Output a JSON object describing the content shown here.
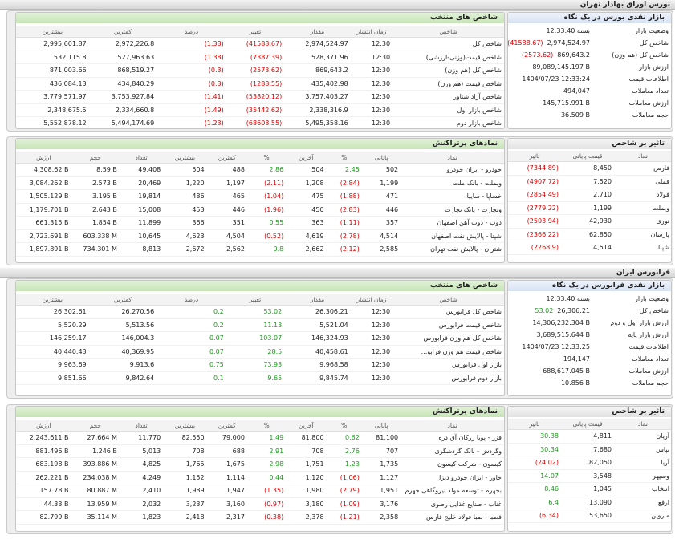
{
  "sections": [
    {
      "title": "بورس اوراق بهادار تهران",
      "indices": {
        "title": "شاخص های منتخب",
        "columns": [
          "شاخص",
          "زمان انتشار",
          "مقدار",
          "تغییر",
          "درصد",
          "کمترین",
          "بیشترین"
        ],
        "rows": [
          [
            "شاخص کل",
            "12:30",
            "2,974,524.97",
            "(41588.67)",
            "(1.38)",
            "2,972,226.8",
            "2,995,601.87"
          ],
          [
            "شاخص قیمت(وزنی-ارزشی)",
            "12:30",
            "528,371.96",
            "(7387.39)",
            "(1.38)",
            "527,963.63",
            "532,115.8"
          ],
          [
            "شاخص کل (هم وزن)",
            "12:30",
            "869,643.2",
            "(2573.62)",
            "(0.3)",
            "868,519.27",
            "871,003.66"
          ],
          [
            "شاخص قیمت (هم وزن)",
            "12:30",
            "435,402.98",
            "(1288.55)",
            "(0.3)",
            "434,840.29",
            "436,084.13"
          ],
          [
            "شاخص آزاد شناور",
            "12:30",
            "3,757,403.27",
            "(53820.12)",
            "(1.41)",
            "3,753,927.84",
            "3,779,571.97"
          ],
          [
            "شاخص بازار اول",
            "12:30",
            "2,338,316.9",
            "(35442.62)",
            "(1.49)",
            "2,334,660.8",
            "2,348,675.5"
          ],
          [
            "شاخص بازار دوم",
            "12:30",
            "5,495,358.16",
            "(68608.55)",
            "(1.23)",
            "5,494,174.69",
            "5,552,878.12"
          ]
        ]
      },
      "glance": {
        "title": "بازار نقدی بورس در یک نگاه",
        "rows": [
          {
            "label": "وضعیت بازار",
            "value": "بسته 12:33:40"
          },
          {
            "label": "شاخص کل",
            "value": "2,974,524.97",
            "change": "(41588.67)"
          },
          {
            "label": "شاخص کل (هم وزن)",
            "value": "869,643.2",
            "change": "(2573.62)"
          },
          {
            "label": "ارزش بازار",
            "value": "89,089,145.197 B"
          },
          {
            "label": "اطلاعات قیمت",
            "value": "1404/07/23 12:33:24"
          },
          {
            "label": "تعداد معاملات",
            "value": "494,047"
          },
          {
            "label": "ارزش معاملات",
            "value": "145,715.991 B"
          },
          {
            "label": "حجم معاملات",
            "value": "36.509 B"
          }
        ]
      },
      "active": {
        "title": "نمادهای پرتراکنش",
        "columns": [
          "نماد",
          "پایانی",
          "%",
          "آخرین",
          "%",
          "کمترین",
          "بیشترین",
          "تعداد",
          "حجم",
          "ارزش"
        ],
        "rows": [
          [
            "خودرو - ایران خودرو",
            "502",
            "2.45",
            "504",
            "2.86",
            "488",
            "504",
            "49,408",
            "8.59 B",
            "4,308.62 B"
          ],
          [
            "وبملت - بانک ملت",
            "1,199",
            "(2.84)",
            "1,208",
            "(2.11)",
            "1,197",
            "1,220",
            "20,469",
            "2.573 B",
            "3,084.262 B"
          ],
          [
            "خساپا - سایپا",
            "471",
            "(1.88)",
            "475",
            "(1.04)",
            "465",
            "486",
            "19,814",
            "3.195 B",
            "1,505.129 B"
          ],
          [
            "وتجارت - بانک تجارت",
            "446",
            "(2.83)",
            "450",
            "(1.96)",
            "446",
            "453",
            "15,008",
            "2.643 B",
            "1,179.701 B"
          ],
          [
            "ذوب - ذوب آهن اصفهان",
            "357",
            "(1.11)",
            "363",
            "0.55",
            "351",
            "366",
            "11,899",
            "1.854 B",
            "661.315 B"
          ],
          [
            "شپنا - پالایش نفت اصفهان",
            "4,514",
            "(2.78)",
            "4,619",
            "(0.52)",
            "4,504",
            "4,623",
            "10,645",
            "603.338 M",
            "2,723.691 B"
          ],
          [
            "شتران - پالایش نفت تهران",
            "2,585",
            "(2.12)",
            "2,662",
            "0.8",
            "2,562",
            "2,672",
            "8,813",
            "734.301 M",
            "1,897.891 B"
          ]
        ]
      },
      "impact": {
        "title": "تاثیر بر شاخص",
        "columns": [
          "نماد",
          "قیمت پایانی",
          "تاثیر"
        ],
        "rows": [
          [
            "فارس",
            "8,450",
            "(7344.89)"
          ],
          [
            "فملی",
            "7,520",
            "(4907.72)"
          ],
          [
            "فولاد",
            "2,710",
            "(2854.49)"
          ],
          [
            "وبملت",
            "1,199",
            "(2779.22)"
          ],
          [
            "نوری",
            "42,930",
            "(2503.94)"
          ],
          [
            "پارسان",
            "62,850",
            "(2366.22)"
          ],
          [
            "شپنا",
            "4,514",
            "(2268.9)"
          ]
        ]
      }
    },
    {
      "title": "فرابورس ایران",
      "indices": {
        "title": "شاخص های منتخب",
        "columns": [
          "شاخص",
          "زمان انتشار",
          "مقدار",
          "تغییر",
          "درصد",
          "کمترین",
          "بیشترین"
        ],
        "rows": [
          [
            "شاخص کل فرابورس",
            "12:30",
            "26,306.21",
            "53.02",
            "0.2",
            "26,270.56",
            "26,302.61"
          ],
          [
            "شاخص قیمت فرابورس",
            "12:30",
            "5,521.04",
            "11.13",
            "0.2",
            "5,513.56",
            "5,520.29"
          ],
          [
            "شاخص کل هم وزن فرابورس",
            "12:30",
            "146,324.93",
            "103.07",
            "0.07",
            "146,004.3",
            "146,259.17"
          ],
          [
            "شاخص قیمت هم وزن فرابو...",
            "12:30",
            "40,458.61",
            "28.5",
            "0.07",
            "40,369.95",
            "40,440.43"
          ],
          [
            "بازار اول فرابورس",
            "12:30",
            "9,968.58",
            "73.93",
            "0.75",
            "9,913.6",
            "9,963.69"
          ],
          [
            "بازار دوم فرابورس",
            "12:30",
            "9,845.74",
            "9.65",
            "0.1",
            "9,842.64",
            "9,851.66"
          ]
        ]
      },
      "glance": {
        "title": "بازار نقدی فرابورس در یک نگاه",
        "rows": [
          {
            "label": "وضعیت بازار",
            "value": "بسته 12:33:40"
          },
          {
            "label": "شاخص کل",
            "value": "26,306.21",
            "change": "53.02"
          },
          {
            "label": "ارزش بازار اول و دوم",
            "value": "14,306,232.304 B"
          },
          {
            "label": "ارزش بازار پایه",
            "value": "3,689,515.644 B"
          },
          {
            "label": "اطلاعات قیمت",
            "value": "1404/07/23 12:33:25"
          },
          {
            "label": "تعداد معاملات",
            "value": "194,147"
          },
          {
            "label": "ارزش معاملات",
            "value": "688,617.045 B"
          },
          {
            "label": "حجم معاملات",
            "value": "10.856 B"
          }
        ]
      },
      "active": {
        "title": "نمادهای پرتراکنش",
        "columns": [
          "نماد",
          "پایانی",
          "%",
          "آخرین",
          "%",
          "کمترین",
          "بیشترین",
          "تعداد",
          "حجم",
          "ارزش"
        ],
        "rows": [
          [
            "فزر - پویا زرکان آق دره",
            "81,100",
            "0.62",
            "81,800",
            "1.49",
            "79,000",
            "82,550",
            "11,770",
            "27.664 M",
            "2,243.611 B"
          ],
          [
            "وگردش - بانک گردشگری",
            "707",
            "2.76",
            "708",
            "2.91",
            "688",
            "708",
            "5,013",
            "1.246 B",
            "881.496 B"
          ],
          [
            "کیسون - شرکت کیسون",
            "1,735",
            "1.23",
            "1,751",
            "2.98",
            "1,675",
            "1,765",
            "4,825",
            "393.886 M",
            "683.198 B"
          ],
          [
            "خاور - ایران خودرو دیزل",
            "1,127",
            "(1.06)",
            "1,120",
            "0.44",
            "1,114",
            "1,152",
            "4,249",
            "234.038 M",
            "262.221 B"
          ],
          [
            "بجهرم - توسعه مولد نیروگاهی جهرم",
            "1,951",
            "(2.79)",
            "1,980",
            "(1.35)",
            "1,947",
            "1,989",
            "2,410",
            "80.887 M",
            "157.78 B"
          ],
          [
            "غناب - صنایع غذایی رضوی",
            "3,176",
            "(1.09)",
            "3,180",
            "(0.97)",
            "3,160",
            "3,237",
            "2,032",
            "13.959 M",
            "44.33 B"
          ],
          [
            "فصبا - صبا فولاد خلیج فارس",
            "2,358",
            "(1.21)",
            "2,378",
            "(0.38)",
            "2,317",
            "2,418",
            "1,823",
            "35.114 M",
            "82.799 B"
          ]
        ]
      },
      "impact": {
        "title": "تاثیر بر شاخص",
        "columns": [
          "نماد",
          "قیمت پایانی",
          "تاثیر"
        ],
        "rows": [
          [
            "آریان",
            "4,811",
            "30.38"
          ],
          [
            "بپاس",
            "7,680",
            "30.34"
          ],
          [
            "آریا",
            "82,050",
            "(24.02)"
          ],
          [
            "وسپهر",
            "3,548",
            "14.07"
          ],
          [
            "انتخاب",
            "1,045",
            "8.46"
          ],
          [
            "ارفع",
            "13,090",
            "6.4"
          ],
          [
            "ماروین",
            "53,650",
            "(6.34)"
          ]
        ]
      }
    }
  ]
}
